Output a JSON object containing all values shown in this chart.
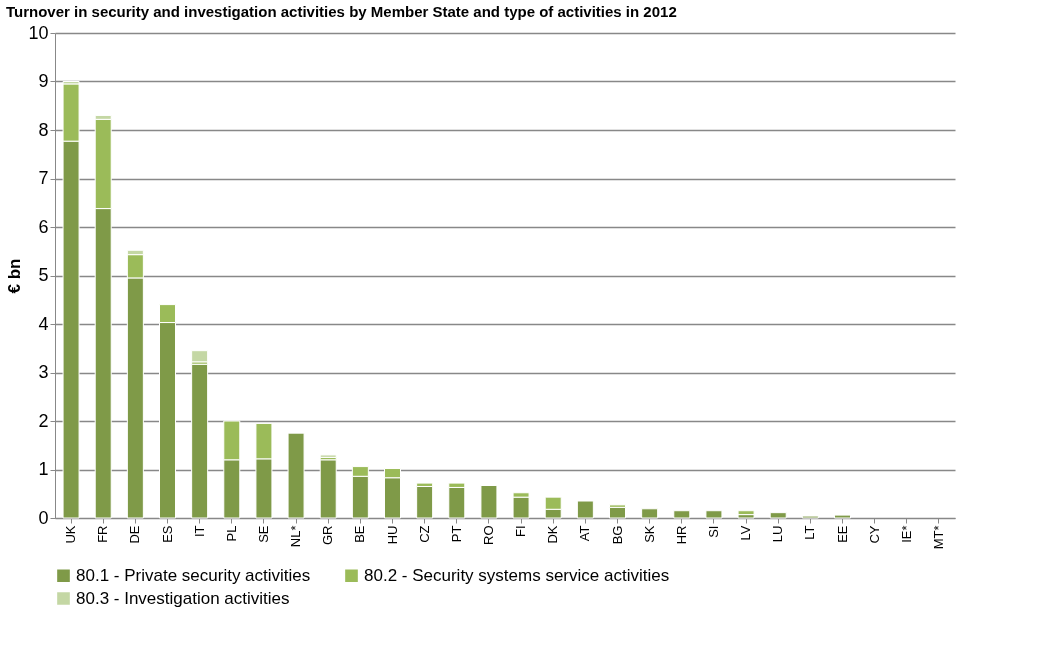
{
  "chart_data": {
    "type": "bar",
    "stacked": true,
    "title": "Turnover in security and investigation activities by Member State and type of activities in 2012",
    "ylabel": "€ bn",
    "categories": [
      "UK",
      "FR",
      "DE",
      "ES",
      "IT",
      "PL",
      "SE",
      "NL*",
      "GR",
      "BE",
      "HU",
      "CZ",
      "PT",
      "RO",
      "FI",
      "DK",
      "AT",
      "BG",
      "SK",
      "HR",
      "SI",
      "LV",
      "LU",
      "LT",
      "EE",
      "CY",
      "IE*",
      "MT*"
    ],
    "series": [
      {
        "name": "80.1 - Private security activities",
        "color": "#7f9a48",
        "values": [
          7.77,
          6.38,
          4.95,
          4.03,
          3.17,
          1.2,
          1.22,
          1.75,
          1.2,
          0.86,
          0.83,
          0.65,
          0.63,
          0.67,
          0.43,
          0.18,
          0.35,
          0.22,
          0.19,
          0.15,
          0.15,
          0.07,
          0.11,
          0.04,
          0.06,
          null,
          null,
          null
        ]
      },
      {
        "name": "80.2 - Security systems service activities",
        "color": "#9bbb59",
        "values": [
          1.18,
          1.84,
          0.48,
          0.37,
          0.05,
          0.8,
          0.73,
          null,
          0.05,
          0.2,
          0.19,
          0.07,
          0.09,
          null,
          0.09,
          0.25,
          null,
          0.05,
          null,
          null,
          null,
          0.08,
          null,
          null,
          null,
          null,
          null,
          null
        ]
      },
      {
        "name": "80.3 - Investigation activities",
        "color": "#c4d7a4",
        "values": [
          0.05,
          0.08,
          0.09,
          null,
          0.23,
          null,
          null,
          null,
          0.05,
          null,
          null,
          null,
          null,
          null,
          null,
          null,
          null,
          null,
          null,
          null,
          null,
          null,
          null,
          null,
          null,
          null,
          null,
          null
        ]
      }
    ],
    "ylim": [
      0,
      10
    ],
    "yticks": [
      0,
      1,
      2,
      3,
      4,
      5,
      6,
      7,
      8,
      9,
      10
    ],
    "grid": "y",
    "legend": "bottom"
  }
}
